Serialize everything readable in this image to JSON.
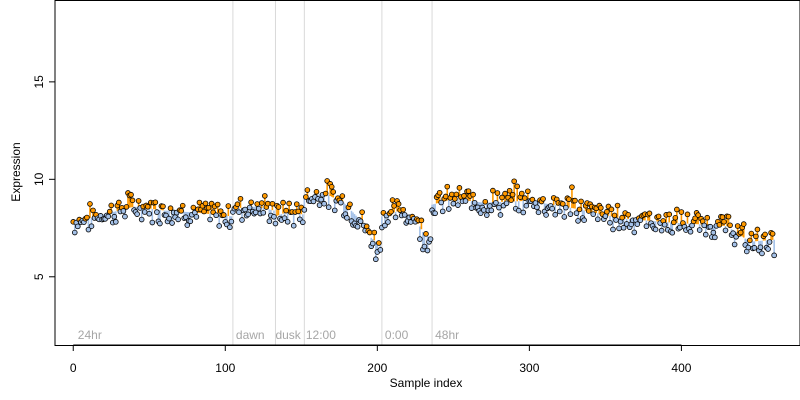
{
  "chart_data": {
    "type": "scatter",
    "title": "",
    "xlabel": "Sample index",
    "ylabel": "Expression",
    "xlim": [
      -12,
      478
    ],
    "ylim": [
      1.5,
      19.2
    ],
    "x_ticks": [
      0,
      100,
      200,
      300,
      400
    ],
    "y_ticks": [
      5,
      10,
      15
    ],
    "grid": false,
    "legend": "none",
    "colors": {
      "high": "#ff9900",
      "low": "#a4c1e8",
      "edge": "#000000",
      "divider": "#d9d9d9",
      "phase_text": "#a6a6a6"
    },
    "phase_dividers": [
      105,
      133,
      152,
      203,
      236
    ],
    "phase_labels": [
      {
        "text": "24hr",
        "x": 3
      },
      {
        "text": "dawn",
        "x": 107
      },
      {
        "text": "dusk",
        "x": 133
      },
      {
        "text": "12:00",
        "x": 153
      },
      {
        "text": "0:00",
        "x": 205
      },
      {
        "text": "48hr",
        "x": 238
      }
    ],
    "segments": [
      {
        "x_start": 0,
        "x_end": 104,
        "profile": [
          [
            0,
            7.8
          ],
          [
            20,
            8.2
          ],
          [
            40,
            8.6
          ],
          [
            60,
            8.4
          ],
          [
            80,
            8.3
          ],
          [
            104,
            8.1
          ]
        ]
      },
      {
        "x_start": 105,
        "x_end": 132,
        "profile": [
          [
            105,
            8.5
          ],
          [
            120,
            8.6
          ],
          [
            132,
            8.4
          ]
        ]
      },
      {
        "x_start": 133,
        "x_end": 151,
        "profile": [
          [
            133,
            8.1
          ],
          [
            140,
            8.3
          ],
          [
            151,
            8.2
          ]
        ]
      },
      {
        "x_start": 152,
        "x_end": 202,
        "profile": [
          [
            152,
            9.0
          ],
          [
            165,
            9.3
          ],
          [
            178,
            8.8
          ],
          [
            190,
            7.8
          ],
          [
            196,
            7.0
          ],
          [
            202,
            6.6
          ]
        ]
      },
      {
        "x_start": 203,
        "x_end": 235,
        "profile": [
          [
            203,
            8.1
          ],
          [
            215,
            8.4
          ],
          [
            225,
            8.0
          ],
          [
            230,
            7.3
          ],
          [
            235,
            7.0
          ]
        ]
      },
      {
        "x_start": 236,
        "x_end": 461,
        "profile": [
          [
            236,
            8.7
          ],
          [
            250,
            9.0
          ],
          [
            270,
            8.8
          ],
          [
            300,
            8.9
          ],
          [
            330,
            8.5
          ],
          [
            360,
            8.0
          ],
          [
            390,
            7.8
          ],
          [
            410,
            7.7
          ],
          [
            430,
            7.6
          ],
          [
            445,
            6.8
          ],
          [
            461,
            6.9
          ]
        ]
      }
    ],
    "notable_points": [
      {
        "x": 36,
        "y": 9.3
      },
      {
        "x": 199,
        "y": 5.9
      },
      {
        "x": 230,
        "y": 6.4
      },
      {
        "x": 290,
        "y": 9.9
      },
      {
        "x": 328,
        "y": 9.6
      },
      {
        "x": 443,
        "y": 6.3
      },
      {
        "x": 461,
        "y": 6.1
      }
    ]
  }
}
